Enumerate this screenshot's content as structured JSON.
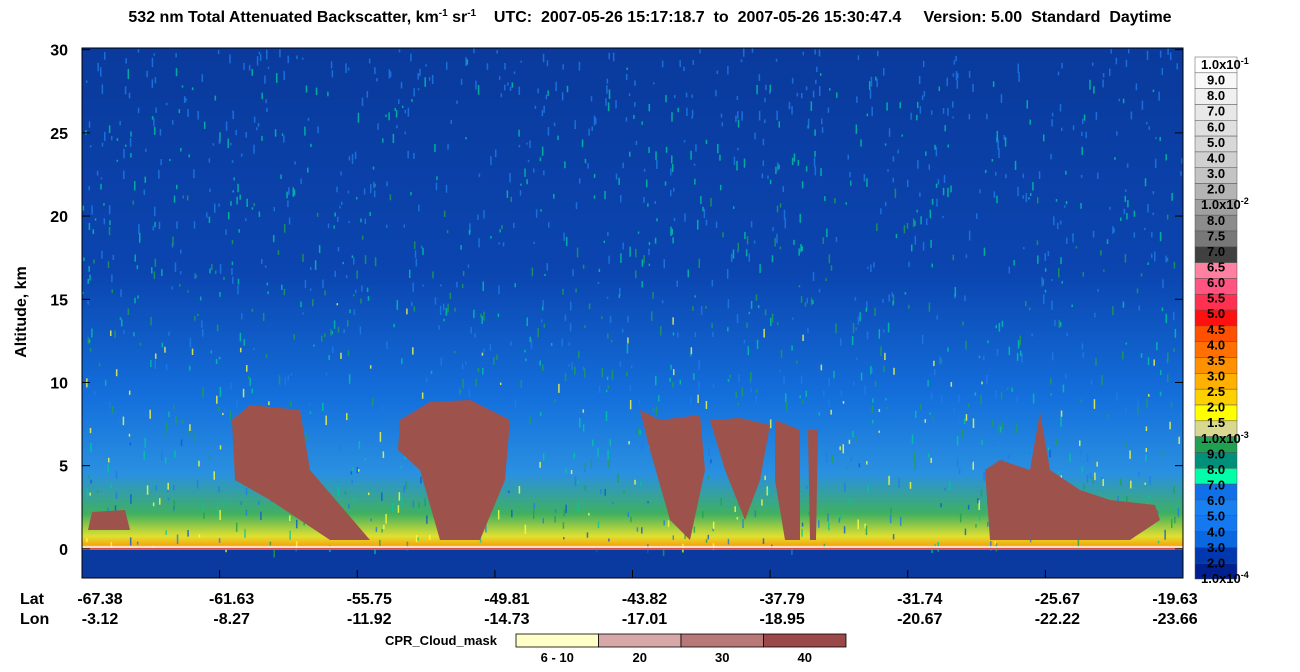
{
  "chart_data": {
    "type": "heatmap",
    "title": [
      "532 nm Total Attenuated Backscatter, km",
      "-1",
      " sr",
      "-1",
      "    UTC:  2007-05-26 15:17:18.7  to  2007-05-26 15:30:47.4     Version: 5.00  Standard  Daytime"
    ],
    "ylabel": "Altitude, km",
    "ylim": [
      -1.75,
      30.1
    ],
    "yticks": [
      0,
      5,
      10,
      15,
      20,
      25,
      30
    ],
    "x_row_labels": [
      "Lat",
      "Lon"
    ],
    "lat": [
      "-67.38",
      "-61.63",
      "-55.75",
      "-49.81",
      "-43.82",
      "-37.79",
      "-31.74",
      "-25.67",
      "-19.63"
    ],
    "lon": [
      "-3.12",
      "-8.27",
      "-11.92",
      "-14.73",
      "-17.01",
      "-18.95",
      "-20.67",
      "-22.22",
      "-23.66"
    ],
    "colorbar": {
      "labels": [
        {
          "text": "1.0x10",
          "sup": "-1"
        },
        "9.0",
        "8.0",
        "7.0",
        "6.0",
        "5.0",
        "4.0",
        "3.0",
        "2.0",
        {
          "text": "1.0x10",
          "sup": "-2"
        },
        "8.0",
        "7.5",
        "7.0",
        "6.5",
        "6.0",
        "5.5",
        "5.0",
        "4.5",
        "4.0",
        "3.5",
        "3.0",
        "2.5",
        "2.0",
        "1.5",
        {
          "text": "1.0x10",
          "sup": "-3"
        },
        "9.0",
        "8.0",
        "7.0",
        "6.0",
        "5.0",
        "4.0",
        "3.0",
        "2.0",
        {
          "text": "1.0x10",
          "sup": "-4"
        }
      ],
      "colors": [
        "#ffffff",
        "#f8f8f8",
        "#f0f0f0",
        "#e8e8e8",
        "#e0e0e0",
        "#d8d8d8",
        "#d0d0d0",
        "#c4c4c4",
        "#b4b4b4",
        "#a0a0a0",
        "#8c8c8c",
        "#787878",
        "#404040",
        "#ff80a0",
        "#ff5580",
        "#ff3050",
        "#ff1010",
        "#ff5000",
        "#ff7000",
        "#ff9000",
        "#ffb000",
        "#ffd000",
        "#ffff00",
        "#d8d890",
        "#20a050",
        "#00907a",
        "#00ffa8",
        "#1070e8",
        "#1880f0",
        "#1478f0",
        "#0a68e0",
        "#0038b0",
        "#002090"
      ]
    },
    "cpr_legend": {
      "title": "CPR_Cloud_mask",
      "labels": [
        "6 - 10",
        "20",
        "30",
        "40"
      ],
      "colors": [
        "#ffffc8",
        "#d8a8a8",
        "#b87878",
        "#9a4848"
      ]
    }
  }
}
